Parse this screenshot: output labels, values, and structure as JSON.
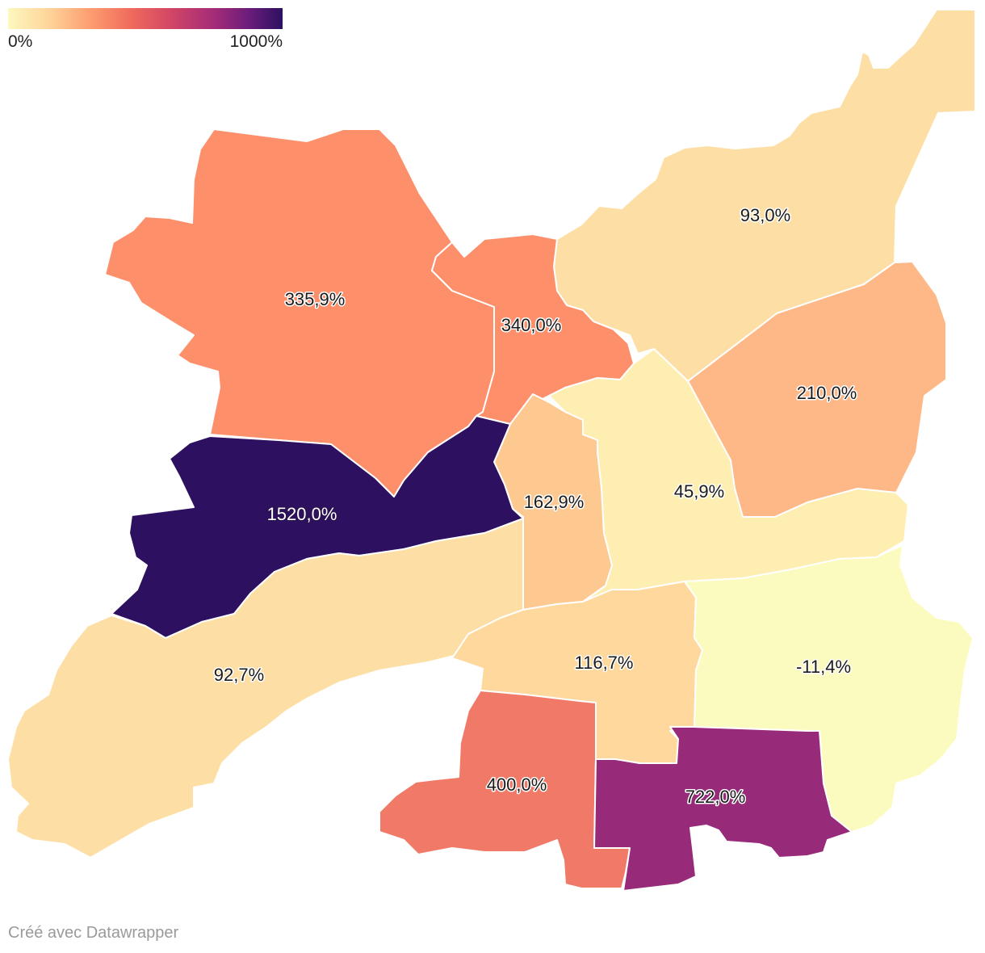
{
  "legend": {
    "min_label": "0%",
    "max_label": "1000%",
    "colors": [
      "#fcf8be",
      "#fed49a",
      "#fd9d70",
      "#ef6a5c",
      "#d04566",
      "#a42c78",
      "#6a1c7a",
      "#2c1160"
    ]
  },
  "regions": [
    {
      "id": "north-west",
      "label": "335,9%",
      "value": 335.9,
      "color": "#fd8f6b"
    },
    {
      "id": "north-center",
      "label": "340,0%",
      "value": 340.0,
      "color": "#fd8f6b"
    },
    {
      "id": "north-east",
      "label": "93,0%",
      "value": 93.0,
      "color": "#fddfa6"
    },
    {
      "id": "east",
      "label": "210,0%",
      "value": 210.0,
      "color": "#feb887"
    },
    {
      "id": "center",
      "label": "45,9%",
      "value": 45.9,
      "color": "#feeeb2"
    },
    {
      "id": "center-west",
      "label": "162,9%",
      "value": 162.9,
      "color": "#fec891"
    },
    {
      "id": "west",
      "label": "1520,0%",
      "value": 1520.0,
      "color": "#2d1160"
    },
    {
      "id": "south-west",
      "label": "92,7%",
      "value": 92.7,
      "color": "#fddfa6"
    },
    {
      "id": "south-center",
      "label": "116,7%",
      "value": 116.7,
      "color": "#fed89c"
    },
    {
      "id": "south-east",
      "label": "-11,4%",
      "value": -11.4,
      "color": "#fcfbbf"
    },
    {
      "id": "south",
      "label": "400,0%",
      "value": 400.0,
      "color": "#f07a67"
    },
    {
      "id": "south-south-east",
      "label": "722,0%",
      "value": 722.0,
      "color": "#982a7a"
    }
  ],
  "credit": "Créé avec Datawrapper"
}
